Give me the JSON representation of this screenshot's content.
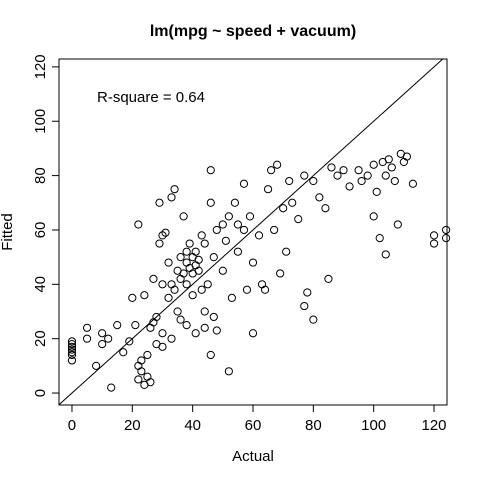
{
  "chart_data": {
    "type": "scatter",
    "title": "lm(mpg ~ speed + vacuum)",
    "x_label": "Actual",
    "y_label": "Fitted",
    "annotation": "R-square = 0.64",
    "x": [
      0,
      0,
      0,
      0,
      0,
      0,
      0,
      5,
      5,
      8,
      10,
      10,
      12,
      13,
      15,
      17,
      19,
      20,
      21,
      22,
      22,
      23,
      23,
      24,
      24,
      25,
      25,
      26,
      26,
      27,
      27,
      28,
      28,
      29,
      29,
      30,
      30,
      30,
      31,
      32,
      32,
      33,
      33,
      34,
      34,
      35,
      35,
      36,
      36,
      36,
      37,
      37,
      38,
      38,
      38,
      39,
      39,
      40,
      40,
      40,
      41,
      41,
      42,
      42,
      43,
      43,
      44,
      44,
      45,
      46,
      46,
      47,
      47,
      48,
      48,
      50,
      50,
      51,
      52,
      52,
      53,
      54,
      55,
      55,
      57,
      57,
      58,
      59,
      60,
      60,
      62,
      63,
      64,
      65,
      66,
      67,
      68,
      69,
      70,
      71,
      72,
      73,
      75,
      77,
      77,
      78,
      80,
      80,
      82,
      84,
      85,
      86,
      88,
      90,
      92,
      95,
      96,
      98,
      100,
      100,
      101,
      102,
      103,
      104,
      104,
      105,
      106,
      107,
      108,
      109,
      110,
      111,
      113,
      120,
      120,
      124,
      124,
      22,
      38,
      41,
      46,
      30,
      33,
      44
    ],
    "values": [
      12,
      14,
      16,
      18,
      19,
      17,
      15,
      24,
      20,
      10,
      22,
      18,
      20,
      2,
      25,
      15,
      19,
      35,
      25,
      5,
      10,
      8,
      12,
      3,
      36,
      6,
      14,
      4,
      24,
      26,
      42,
      28,
      18,
      55,
      70,
      22,
      58,
      40,
      59,
      48,
      35,
      72,
      40,
      75,
      38,
      30,
      45,
      50,
      42,
      27,
      44,
      65,
      48,
      52,
      40,
      46,
      55,
      50,
      44,
      36,
      47,
      52,
      49,
      45,
      58,
      38,
      30,
      55,
      40,
      82,
      70,
      50,
      28,
      60,
      23,
      45,
      62,
      56,
      8,
      65,
      35,
      70,
      52,
      62,
      77,
      60,
      38,
      65,
      48,
      22,
      58,
      40,
      38,
      75,
      82,
      60,
      84,
      44,
      68,
      52,
      78,
      70,
      64,
      32,
      80,
      37,
      27,
      78,
      72,
      68,
      42,
      83,
      80,
      82,
      76,
      82,
      78,
      80,
      65,
      84,
      74,
      57,
      85,
      51,
      80,
      86,
      83,
      78,
      62,
      88,
      85,
      87,
      77,
      55,
      58,
      57,
      60,
      62,
      25,
      22,
      14,
      17,
      20,
      24
    ],
    "xlim": [
      -4.3,
      124.3
    ],
    "ylim": [
      -4.4,
      122.9
    ],
    "xticks": [
      0,
      20,
      40,
      60,
      80,
      100,
      120
    ],
    "yticks": [
      0,
      20,
      40,
      60,
      80,
      100,
      120
    ],
    "color": "#000000"
  }
}
